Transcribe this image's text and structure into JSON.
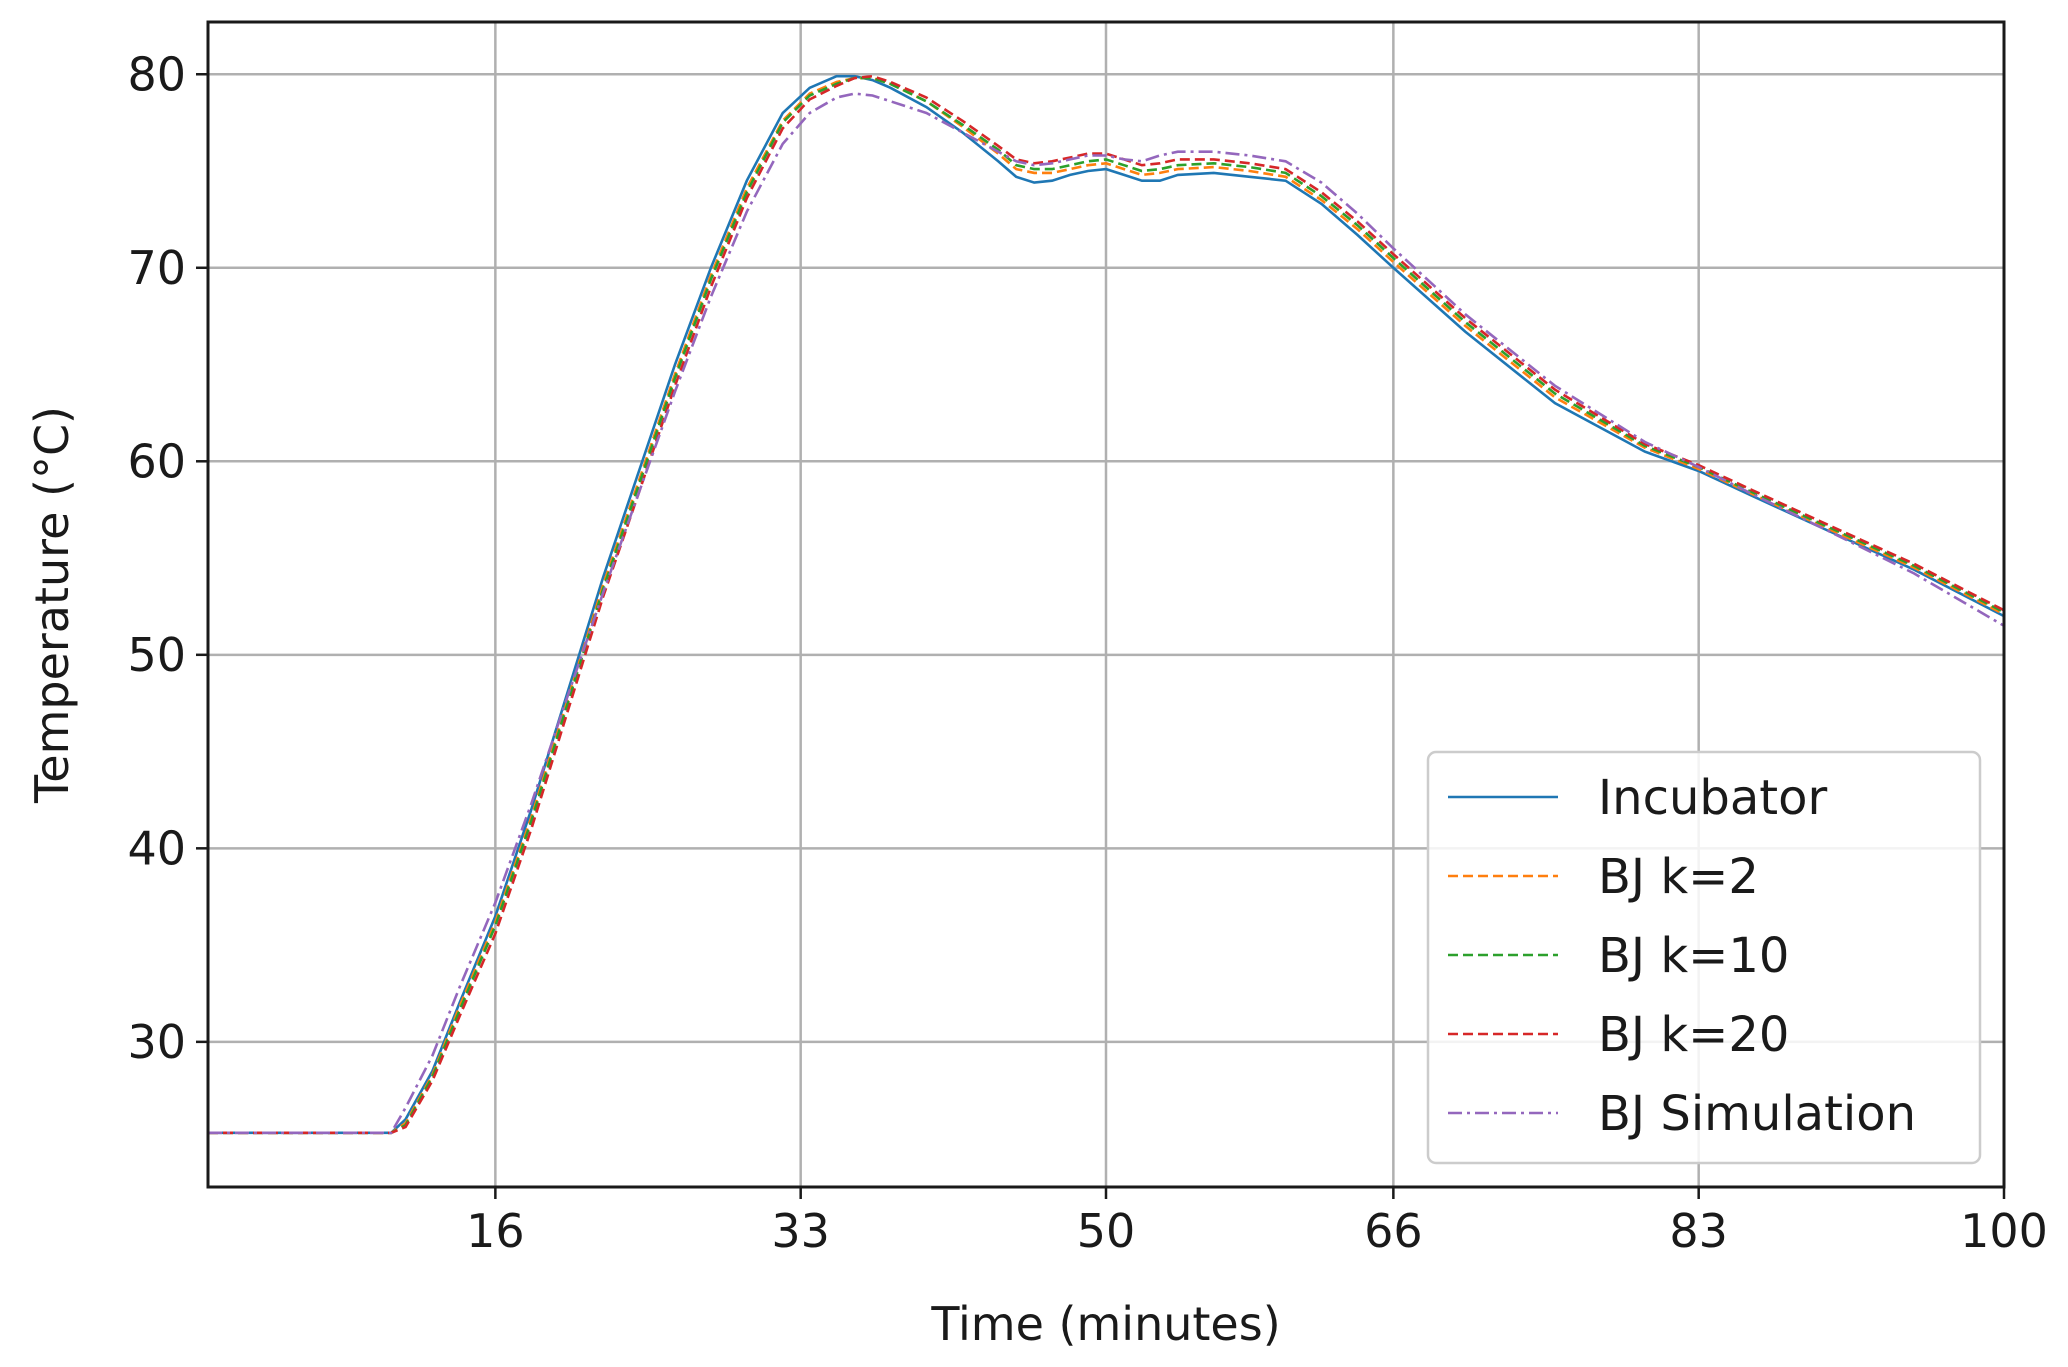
{
  "chart_data": {
    "type": "line",
    "title": "",
    "xlabel": "Time (minutes)",
    "ylabel": "Temperature (°C)",
    "xlim": [
      0,
      100
    ],
    "ylim": [
      22.5,
      82.7
    ],
    "xticks": [
      16,
      33,
      50,
      66,
      83,
      100
    ],
    "xtick_labels": [
      "16",
      "33",
      "50",
      "66",
      "83",
      "100"
    ],
    "yticks": [
      30,
      40,
      50,
      60,
      70,
      80
    ],
    "ytick_labels": [
      "30",
      "40",
      "50",
      "60",
      "70",
      "80"
    ],
    "grid": true,
    "legend_position": "bottom-right",
    "series": [
      {
        "name": "Incubator",
        "color": "#1f77b4",
        "style": "solid",
        "x": [
          0,
          10.2,
          11.0,
          12.5,
          14.0,
          16.0,
          18.0,
          20.0,
          22.0,
          24.0,
          26.0,
          28.0,
          30.0,
          32.0,
          33.5,
          35.0,
          36.0,
          37.0,
          38.0,
          40.0,
          42.0,
          44.0,
          45.0,
          46.0,
          47.0,
          48.0,
          49.0,
          50.0,
          51.0,
          52.0,
          53.0,
          54.0,
          56.0,
          58.0,
          60.0,
          62.0,
          64.0,
          66.0,
          70.0,
          75.0,
          80.0,
          83.0,
          86.0,
          90.0,
          95.0,
          100.0
        ],
        "y": [
          25.3,
          25.3,
          26.0,
          28.5,
          32.0,
          36.5,
          42.0,
          48.0,
          54.0,
          59.5,
          65.0,
          70.0,
          74.5,
          78.0,
          79.3,
          79.9,
          79.9,
          79.7,
          79.3,
          78.3,
          77.0,
          75.5,
          74.7,
          74.4,
          74.5,
          74.8,
          75.0,
          75.1,
          74.8,
          74.5,
          74.5,
          74.8,
          74.9,
          74.7,
          74.5,
          73.3,
          71.7,
          70.0,
          66.7,
          63.0,
          60.5,
          59.5,
          58.2,
          56.5,
          54.4,
          52.0
        ]
      },
      {
        "name": "BJ k=2",
        "color": "#ff7f0e",
        "style": "dashed",
        "x": [
          0,
          10.2,
          11.0,
          12.5,
          14.0,
          16.0,
          18.0,
          20.0,
          22.0,
          24.0,
          26.0,
          28.0,
          30.0,
          32.0,
          33.5,
          35.0,
          36.0,
          37.0,
          38.0,
          40.0,
          42.0,
          44.0,
          45.0,
          46.0,
          47.0,
          48.0,
          49.0,
          50.0,
          51.0,
          52.0,
          53.0,
          54.0,
          56.0,
          58.0,
          60.0,
          62.0,
          64.0,
          66.0,
          70.0,
          75.0,
          80.0,
          83.0,
          86.0,
          90.0,
          95.0,
          100.0
        ],
        "y": [
          25.3,
          25.3,
          25.8,
          28.3,
          31.8,
          36.2,
          41.6,
          47.6,
          53.6,
          59.0,
          64.5,
          69.6,
          74.1,
          77.6,
          79.0,
          79.6,
          79.8,
          79.8,
          79.5,
          78.6,
          77.3,
          75.9,
          75.1,
          74.9,
          74.9,
          75.1,
          75.3,
          75.4,
          75.1,
          74.8,
          74.9,
          75.1,
          75.2,
          75.0,
          74.7,
          73.5,
          72.0,
          70.3,
          67.0,
          63.3,
          60.7,
          59.6,
          58.3,
          56.6,
          54.5,
          52.1
        ]
      },
      {
        "name": "BJ k=10",
        "color": "#2ca02c",
        "style": "dashed",
        "x": [
          0,
          10.2,
          11.0,
          12.5,
          14.0,
          16.0,
          18.0,
          20.0,
          22.0,
          24.0,
          26.0,
          28.0,
          30.0,
          32.0,
          33.5,
          35.0,
          36.0,
          37.0,
          38.0,
          40.0,
          42.0,
          44.0,
          45.0,
          46.0,
          47.0,
          48.0,
          49.0,
          50.0,
          51.0,
          52.0,
          53.0,
          54.0,
          56.0,
          58.0,
          60.0,
          62.0,
          64.0,
          66.0,
          70.0,
          75.0,
          80.0,
          83.0,
          86.0,
          90.0,
          95.0,
          100.0
        ],
        "y": [
          25.3,
          25.3,
          25.7,
          28.2,
          31.6,
          36.0,
          41.4,
          47.4,
          53.4,
          58.8,
          64.3,
          69.4,
          73.9,
          77.5,
          78.9,
          79.5,
          79.8,
          79.8,
          79.5,
          78.6,
          77.4,
          76.1,
          75.3,
          75.1,
          75.1,
          75.3,
          75.5,
          75.6,
          75.3,
          75.0,
          75.1,
          75.3,
          75.4,
          75.2,
          74.9,
          73.7,
          72.2,
          70.5,
          67.2,
          63.5,
          60.8,
          59.7,
          58.4,
          56.7,
          54.6,
          52.2
        ]
      },
      {
        "name": "BJ k=20",
        "color": "#d62728",
        "style": "dashed",
        "x": [
          0,
          10.2,
          11.0,
          12.5,
          14.0,
          16.0,
          18.0,
          20.0,
          22.0,
          24.0,
          26.0,
          28.0,
          30.0,
          32.0,
          33.5,
          35.0,
          36.0,
          37.0,
          38.0,
          40.0,
          42.0,
          44.0,
          45.0,
          46.0,
          47.0,
          48.0,
          49.0,
          50.0,
          51.0,
          52.0,
          53.0,
          54.0,
          56.0,
          58.0,
          60.0,
          62.0,
          64.0,
          66.0,
          70.0,
          75.0,
          80.0,
          83.0,
          86.0,
          90.0,
          95.0,
          100.0
        ],
        "y": [
          25.3,
          25.3,
          25.6,
          28.0,
          31.3,
          35.6,
          41.0,
          47.0,
          53.0,
          58.4,
          63.9,
          69.0,
          73.6,
          77.2,
          78.7,
          79.4,
          79.8,
          79.9,
          79.6,
          78.8,
          77.6,
          76.3,
          75.6,
          75.4,
          75.5,
          75.7,
          75.9,
          75.9,
          75.6,
          75.3,
          75.4,
          75.6,
          75.6,
          75.4,
          75.1,
          73.9,
          72.4,
          70.7,
          67.4,
          63.7,
          60.9,
          59.8,
          58.5,
          56.8,
          54.7,
          52.3
        ]
      },
      {
        "name": "BJ Simulation",
        "color": "#9467bd",
        "style": "dashdot",
        "x": [
          0,
          10.2,
          11.0,
          12.5,
          14.0,
          16.0,
          18.0,
          20.0,
          22.0,
          24.0,
          26.0,
          28.0,
          30.0,
          32.0,
          33.5,
          35.0,
          36.0,
          37.0,
          38.0,
          40.0,
          42.0,
          44.0,
          45.0,
          46.0,
          47.0,
          48.0,
          49.0,
          50.0,
          51.0,
          52.0,
          53.0,
          54.0,
          56.0,
          58.0,
          60.0,
          62.0,
          64.0,
          66.0,
          70.0,
          75.0,
          80.0,
          83.0,
          86.0,
          90.0,
          95.0,
          100.0
        ],
        "y": [
          25.3,
          25.3,
          26.6,
          29.3,
          32.8,
          37.2,
          42.3,
          47.8,
          53.2,
          58.4,
          63.6,
          68.5,
          72.9,
          76.4,
          78.0,
          78.8,
          79.0,
          78.9,
          78.6,
          78.0,
          77.0,
          76.0,
          75.5,
          75.3,
          75.4,
          75.6,
          75.8,
          75.8,
          75.6,
          75.5,
          75.8,
          76.0,
          76.0,
          75.8,
          75.5,
          74.4,
          72.8,
          71.0,
          67.6,
          63.9,
          61.0,
          59.7,
          58.3,
          56.5,
          54.2,
          51.5
        ]
      }
    ]
  }
}
